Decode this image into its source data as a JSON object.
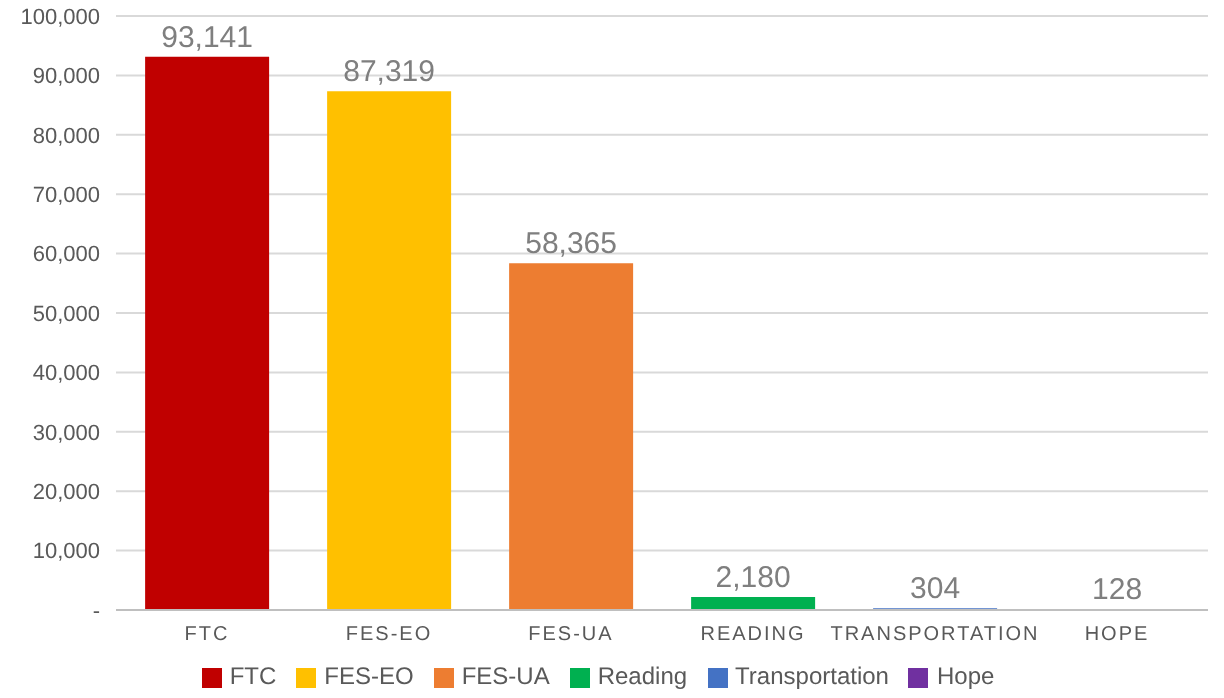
{
  "chart_data": {
    "type": "bar",
    "categories": [
      "FTC",
      "FES-EO",
      "FES-UA",
      "READING",
      "TRANSPORTATION",
      "HOPE"
    ],
    "series": [
      {
        "name": "FTC",
        "color": "#c00000",
        "values": [
          93141,
          null,
          null,
          null,
          null,
          null
        ],
        "value_labels": [
          "93,141",
          null,
          null,
          null,
          null,
          null
        ]
      },
      {
        "name": "FES-EO",
        "color": "#ffc000",
        "values": [
          null,
          87319,
          null,
          null,
          null,
          null
        ],
        "value_labels": [
          null,
          "87,319",
          null,
          null,
          null,
          null
        ]
      },
      {
        "name": "FES-UA",
        "color": "#ed7d31",
        "values": [
          null,
          null,
          58365,
          null,
          null,
          null
        ],
        "value_labels": [
          null,
          null,
          "58,365",
          null,
          null,
          null
        ]
      },
      {
        "name": "Reading",
        "color": "#00b050",
        "values": [
          null,
          null,
          null,
          2180,
          null,
          null
        ],
        "value_labels": [
          null,
          null,
          null,
          "2,180",
          null,
          null
        ]
      },
      {
        "name": "Transportation",
        "color": "#4472c4",
        "values": [
          null,
          null,
          null,
          null,
          304,
          null
        ],
        "value_labels": [
          null,
          null,
          null,
          null,
          "304",
          null
        ]
      },
      {
        "name": "Hope",
        "color": "#7030a0",
        "values": [
          null,
          null,
          null,
          null,
          null,
          128
        ],
        "value_labels": [
          null,
          null,
          null,
          null,
          null,
          "128"
        ]
      }
    ],
    "stacked": true,
    "ylim": [
      0,
      100000
    ],
    "yticks": [
      {
        "value": 0,
        "label": "-"
      },
      {
        "value": 10000,
        "label": "10,000"
      },
      {
        "value": 20000,
        "label": "20,000"
      },
      {
        "value": 30000,
        "label": "30,000"
      },
      {
        "value": 40000,
        "label": "40,000"
      },
      {
        "value": 50000,
        "label": "50,000"
      },
      {
        "value": 60000,
        "label": "60,000"
      },
      {
        "value": 70000,
        "label": "70,000"
      },
      {
        "value": 80000,
        "label": "80,000"
      },
      {
        "value": 90000,
        "label": "90,000"
      },
      {
        "value": 100000,
        "label": "100,000"
      }
    ],
    "grid": "y",
    "legend": "bottom"
  }
}
